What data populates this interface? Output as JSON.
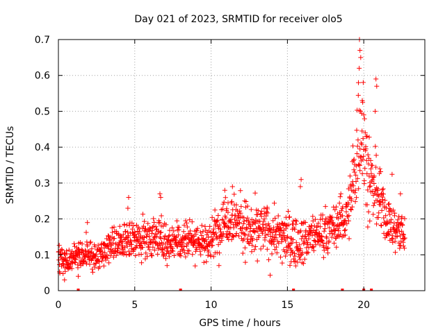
{
  "chart_data": {
    "type": "scatter",
    "title": "Day 021 of 2023, SRMTID for receiver olo5",
    "xlabel": "GPS time / hours",
    "ylabel": "SRMTID / TECUs",
    "xlim": [
      0,
      24
    ],
    "ylim": [
      0,
      0.7
    ],
    "xticks": [
      0,
      5,
      10,
      15,
      20
    ],
    "xtick_labels": [
      "0",
      "5",
      "10",
      "15",
      "20"
    ],
    "yticks": [
      0,
      0.1,
      0.2,
      0.3,
      0.4,
      0.5,
      0.6,
      0.7
    ],
    "ytick_labels": [
      "0",
      "0.1",
      "0.2",
      "0.3",
      "0.4",
      "0.5",
      "0.6",
      "0.7"
    ],
    "grid": true,
    "marker": "+",
    "color": "#ff0000",
    "series": [
      {
        "name": "SRMTID",
        "trend": [
          [
            0.0,
            0.09
          ],
          [
            0.5,
            0.085
          ],
          [
            1.0,
            0.09
          ],
          [
            1.5,
            0.095
          ],
          [
            2.0,
            0.1
          ],
          [
            2.5,
            0.09
          ],
          [
            3.0,
            0.11
          ],
          [
            3.5,
            0.13
          ],
          [
            4.0,
            0.14
          ],
          [
            4.5,
            0.14
          ],
          [
            5.0,
            0.14
          ],
          [
            5.5,
            0.15
          ],
          [
            6.0,
            0.15
          ],
          [
            6.5,
            0.15
          ],
          [
            7.0,
            0.14
          ],
          [
            7.5,
            0.14
          ],
          [
            8.0,
            0.145
          ],
          [
            8.5,
            0.15
          ],
          [
            9.0,
            0.14
          ],
          [
            9.5,
            0.14
          ],
          [
            10.0,
            0.14
          ],
          [
            10.5,
            0.17
          ],
          [
            11.0,
            0.21
          ],
          [
            11.5,
            0.21
          ],
          [
            12.0,
            0.19
          ],
          [
            12.5,
            0.17
          ],
          [
            13.0,
            0.17
          ],
          [
            13.5,
            0.17
          ],
          [
            14.0,
            0.16
          ],
          [
            14.5,
            0.16
          ],
          [
            15.0,
            0.15
          ],
          [
            15.5,
            0.14
          ],
          [
            16.0,
            0.14
          ],
          [
            16.5,
            0.15
          ],
          [
            17.0,
            0.16
          ],
          [
            17.5,
            0.17
          ],
          [
            18.0,
            0.18
          ],
          [
            18.5,
            0.19
          ],
          [
            19.0,
            0.22
          ],
          [
            19.3,
            0.29
          ],
          [
            19.6,
            0.42
          ],
          [
            19.8,
            0.47
          ],
          [
            20.0,
            0.42
          ],
          [
            20.2,
            0.33
          ],
          [
            20.5,
            0.3
          ],
          [
            20.8,
            0.27
          ],
          [
            21.0,
            0.25
          ],
          [
            21.3,
            0.22
          ],
          [
            21.6,
            0.19
          ],
          [
            22.0,
            0.17
          ],
          [
            22.4,
            0.17
          ],
          [
            22.7,
            0.14
          ]
        ],
        "spread": [
          [
            0.0,
            0.03
          ],
          [
            3.0,
            0.035
          ],
          [
            6.0,
            0.05
          ],
          [
            10.0,
            0.05
          ],
          [
            11.0,
            0.07
          ],
          [
            13.0,
            0.06
          ],
          [
            15.0,
            0.06
          ],
          [
            17.0,
            0.05
          ],
          [
            19.0,
            0.06
          ],
          [
            19.6,
            0.17
          ],
          [
            20.0,
            0.18
          ],
          [
            20.5,
            0.1
          ],
          [
            21.0,
            0.07
          ],
          [
            22.7,
            0.05
          ]
        ],
        "peaks": [
          [
            19.72,
            0.7
          ],
          [
            19.75,
            0.67
          ],
          [
            19.8,
            0.65
          ],
          [
            19.7,
            0.62
          ],
          [
            19.65,
            0.58
          ],
          [
            20.8,
            0.59
          ],
          [
            20.85,
            0.57
          ],
          [
            20.75,
            0.5
          ],
          [
            19.9,
            0.53
          ],
          [
            20.0,
            0.49
          ],
          [
            4.6,
            0.26
          ],
          [
            4.55,
            0.23
          ],
          [
            6.65,
            0.27
          ],
          [
            6.7,
            0.26
          ],
          [
            11.4,
            0.29
          ],
          [
            10.9,
            0.28
          ],
          [
            15.9,
            0.31
          ],
          [
            15.85,
            0.29
          ],
          [
            18.5,
            0.27
          ],
          [
            21.05,
            0.34
          ],
          [
            22.4,
            0.27
          ],
          [
            1.9,
            0.19
          ],
          [
            0.4,
            0.03
          ],
          [
            1.3,
            0.04
          ]
        ],
        "ground_marks": [
          1.3,
          8.0,
          15.4,
          18.6,
          20.0,
          20.5
        ],
        "n_points": 1400
      }
    ]
  }
}
